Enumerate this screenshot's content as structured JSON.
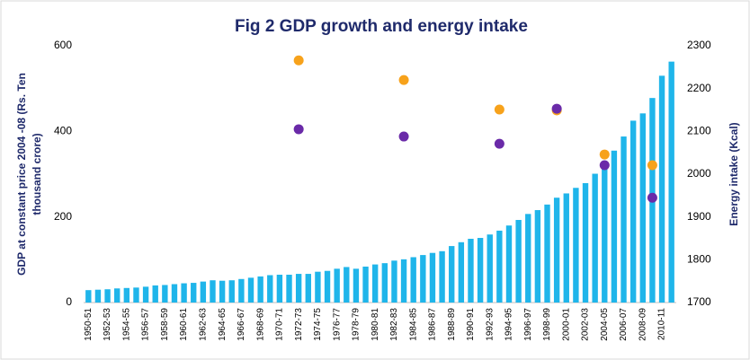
{
  "chart_data": {
    "type": "bar",
    "title": "Fig 2 GDP growth and energy intake",
    "ylabel": [
      "GDP at constant  price  2004 -08 (Rs. Ten",
      "thousand crore)"
    ],
    "y2label": "Energy intake (Kcal)",
    "categories": [
      "1950-51",
      null,
      "1952-53",
      null,
      "1954-55",
      null,
      "1956-57",
      null,
      "1958-59",
      null,
      "1960-61",
      null,
      "1962-63",
      null,
      "1964-65",
      null,
      "1966-67",
      null,
      "1968-69",
      null,
      "1970-71",
      null,
      "1972-73",
      null,
      "1974-75",
      null,
      "1976-77",
      null,
      "1978-79",
      null,
      "1980-81",
      null,
      "1982-83",
      null,
      "1984-85",
      null,
      "1986-87",
      null,
      "1988-89",
      null,
      "1990-91",
      null,
      "1992-93",
      null,
      "1994-95",
      null,
      "1996-97",
      null,
      "1998-99",
      null,
      "2000-01",
      null,
      "2002-03",
      null,
      "2004-05",
      null,
      "2006-07",
      null,
      "2008-09",
      null,
      "2010-11",
      null
    ],
    "series": [
      {
        "type": "bar",
        "color": "#1fb5ea",
        "values": [
          29,
          30,
          31,
          33,
          34,
          35,
          37,
          40,
          41,
          43,
          45,
          46,
          49,
          52,
          51,
          52,
          55,
          58,
          61,
          64,
          65,
          65,
          67,
          67,
          72,
          74,
          79,
          83,
          79,
          84,
          89,
          92,
          98,
          101,
          106,
          111,
          116,
          120,
          132,
          141,
          149,
          151,
          159,
          168,
          180,
          193,
          207,
          216,
          229,
          245,
          255,
          268,
          279,
          301,
          330,
          355,
          388,
          425,
          442,
          478,
          530,
          563
        ]
      },
      {
        "type": "scatter",
        "axis": "y2",
        "color": "#f7a21b",
        "values": [
          null,
          null,
          null,
          null,
          null,
          null,
          null,
          null,
          null,
          null,
          null,
          null,
          null,
          null,
          null,
          null,
          null,
          null,
          null,
          null,
          null,
          null,
          2266,
          null,
          null,
          null,
          null,
          null,
          null,
          null,
          null,
          null,
          null,
          2220,
          null,
          null,
          null,
          null,
          null,
          null,
          null,
          null,
          null,
          2151,
          null,
          null,
          null,
          null,
          null,
          2149,
          null,
          null,
          null,
          null,
          2046,
          null,
          null,
          null,
          null,
          2021,
          null,
          null
        ]
      },
      {
        "type": "scatter",
        "axis": "y2",
        "color": "#6a2aa8",
        "values": [
          null,
          null,
          null,
          null,
          null,
          null,
          null,
          null,
          null,
          null,
          null,
          null,
          null,
          null,
          null,
          null,
          null,
          null,
          null,
          null,
          null,
          null,
          2105,
          null,
          null,
          null,
          null,
          null,
          null,
          null,
          null,
          null,
          null,
          2088,
          null,
          null,
          null,
          null,
          null,
          null,
          null,
          null,
          null,
          2071,
          null,
          null,
          null,
          null,
          null,
          2153,
          null,
          null,
          null,
          null,
          2021,
          null,
          null,
          null,
          null,
          1945,
          null,
          null
        ]
      }
    ],
    "ylim": [
      0,
      600
    ],
    "yticks": [
      0,
      200,
      400,
      600
    ],
    "y2lim": [
      1700,
      2300
    ],
    "y2ticks": [
      1700,
      1800,
      1900,
      2000,
      2100,
      2200,
      2300
    ],
    "grid": false
  }
}
